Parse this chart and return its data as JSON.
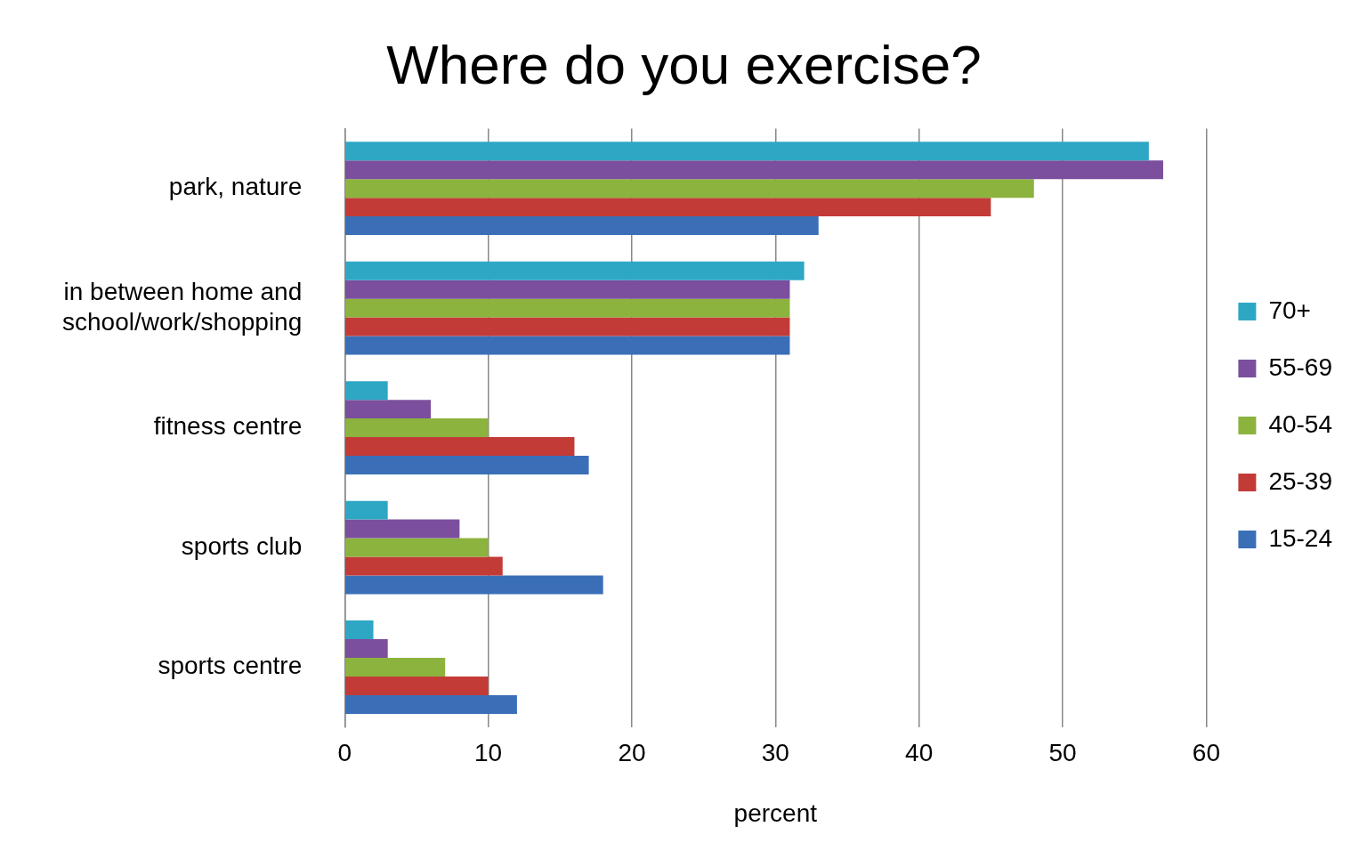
{
  "chart_data": {
    "type": "bar",
    "orientation": "horizontal",
    "title": "Where do you exercise?",
    "xlabel": "percent",
    "categories": [
      "park, nature",
      "in between home and school/work/shopping",
      "fitness centre",
      "sports club",
      "sports centre"
    ],
    "series": [
      {
        "name": "70+",
        "color": "#2ea7c4",
        "values": [
          56,
          32,
          3,
          3,
          2
        ]
      },
      {
        "name": "55-69",
        "color": "#7b4f9d",
        "values": [
          57,
          31,
          6,
          8,
          3
        ]
      },
      {
        "name": "40-54",
        "color": "#8cb33e",
        "values": [
          48,
          31,
          10,
          10,
          7
        ]
      },
      {
        "name": "25-39",
        "color": "#c23b37",
        "values": [
          45,
          31,
          16,
          11,
          10
        ]
      },
      {
        "name": "15-24",
        "color": "#3a6fb8",
        "values": [
          33,
          31,
          17,
          18,
          12
        ]
      }
    ],
    "xlim": [
      0,
      60
    ],
    "xticks": [
      0,
      10,
      20,
      30,
      40,
      50,
      60
    ],
    "grid": "x",
    "legend": "right"
  }
}
